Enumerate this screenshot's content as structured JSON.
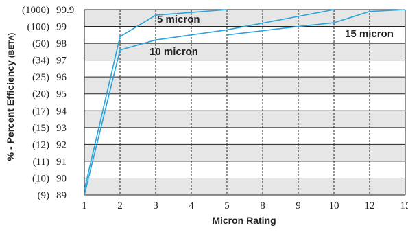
{
  "chart_data": {
    "type": "line",
    "xlabel": "Micron Rating",
    "ylabel": "% - Percent Efficiency (BETA)",
    "x_ticks": [
      "1",
      "2",
      "3",
      "4",
      "5",
      "8",
      "9",
      "10",
      "12",
      "15"
    ],
    "y_ticks": [
      "89",
      "90",
      "91",
      "92",
      "93",
      "94",
      "95",
      "96",
      "97",
      "98",
      "99",
      "99.9"
    ],
    "beta_ticks": [
      "(9)",
      "(10)",
      "(11)",
      "(12)",
      "(15)",
      "(17)",
      "(20)",
      "(25)",
      "(34)",
      "(50)",
      "(100)",
      "(1000)"
    ],
    "grid": true,
    "band_colors": [
      "#e6e6e6",
      "#ffffff"
    ],
    "line_color": "#29a3dc",
    "series": [
      {
        "name": "5 micron",
        "x": [
          "1",
          "2",
          "3",
          "5"
        ],
        "y": [
          "89.3",
          "98.4",
          "99.6",
          "99.9"
        ]
      },
      {
        "name": "10 micron",
        "x": [
          "1",
          "2",
          "3",
          "5",
          "10"
        ],
        "y": [
          "89",
          "97.6",
          "98.2",
          "98.8",
          "99.9"
        ]
      },
      {
        "name": "15 micron",
        "x": [
          "5",
          "9",
          "10",
          "12",
          "15"
        ],
        "y": [
          "98.5",
          "99",
          "99.2",
          "99.8",
          "99.9"
        ]
      }
    ]
  }
}
